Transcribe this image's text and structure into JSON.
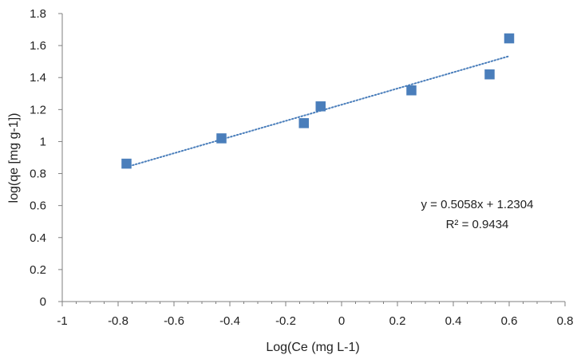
{
  "chart_data": {
    "type": "scatter",
    "title": "",
    "xlabel": "Log(Ce (mg L-1)",
    "ylabel": "log(qe [mg g-1])",
    "xlim": [
      -1,
      0.8
    ],
    "ylim": [
      0,
      1.8
    ],
    "xticks": [
      -1,
      -0.8,
      -0.6,
      -0.4,
      -0.2,
      0,
      0.2,
      0.4,
      0.6,
      0.8
    ],
    "xtick_labels": [
      "-1",
      "-0.8",
      "-0.6",
      "-0.4",
      "-0.2",
      "0",
      "0.2",
      "0.4",
      "0.6",
      "0.8"
    ],
    "yticks": [
      0,
      0.2,
      0.4,
      0.6,
      0.8,
      1,
      1.2,
      1.4,
      1.6,
      1.8
    ],
    "ytick_labels": [
      "0",
      "0.2",
      "0.4",
      "0.6",
      "0.8",
      "1",
      "1.2",
      "1.4",
      "1.6",
      "1.8"
    ],
    "grid": false,
    "legend": "none",
    "series": [
      {
        "x": [
          -0.77,
          -0.43,
          -0.135,
          -0.075,
          0.25,
          0.53,
          0.6
        ],
        "y": [
          0.862,
          1.02,
          1.115,
          1.22,
          1.32,
          1.42,
          1.645
        ],
        "marker": "square",
        "color": "#4a7ebb"
      }
    ],
    "trendline": {
      "type": "linear",
      "slope": 0.5058,
      "intercept": 1.2304,
      "x_range": [
        -0.77,
        0.6
      ],
      "style": "dotted",
      "color": "#4a7ebb"
    },
    "annotations": {
      "equation": "y = 0.5058x + 1.2304",
      "r_squared": "R² = 0.9434"
    }
  }
}
